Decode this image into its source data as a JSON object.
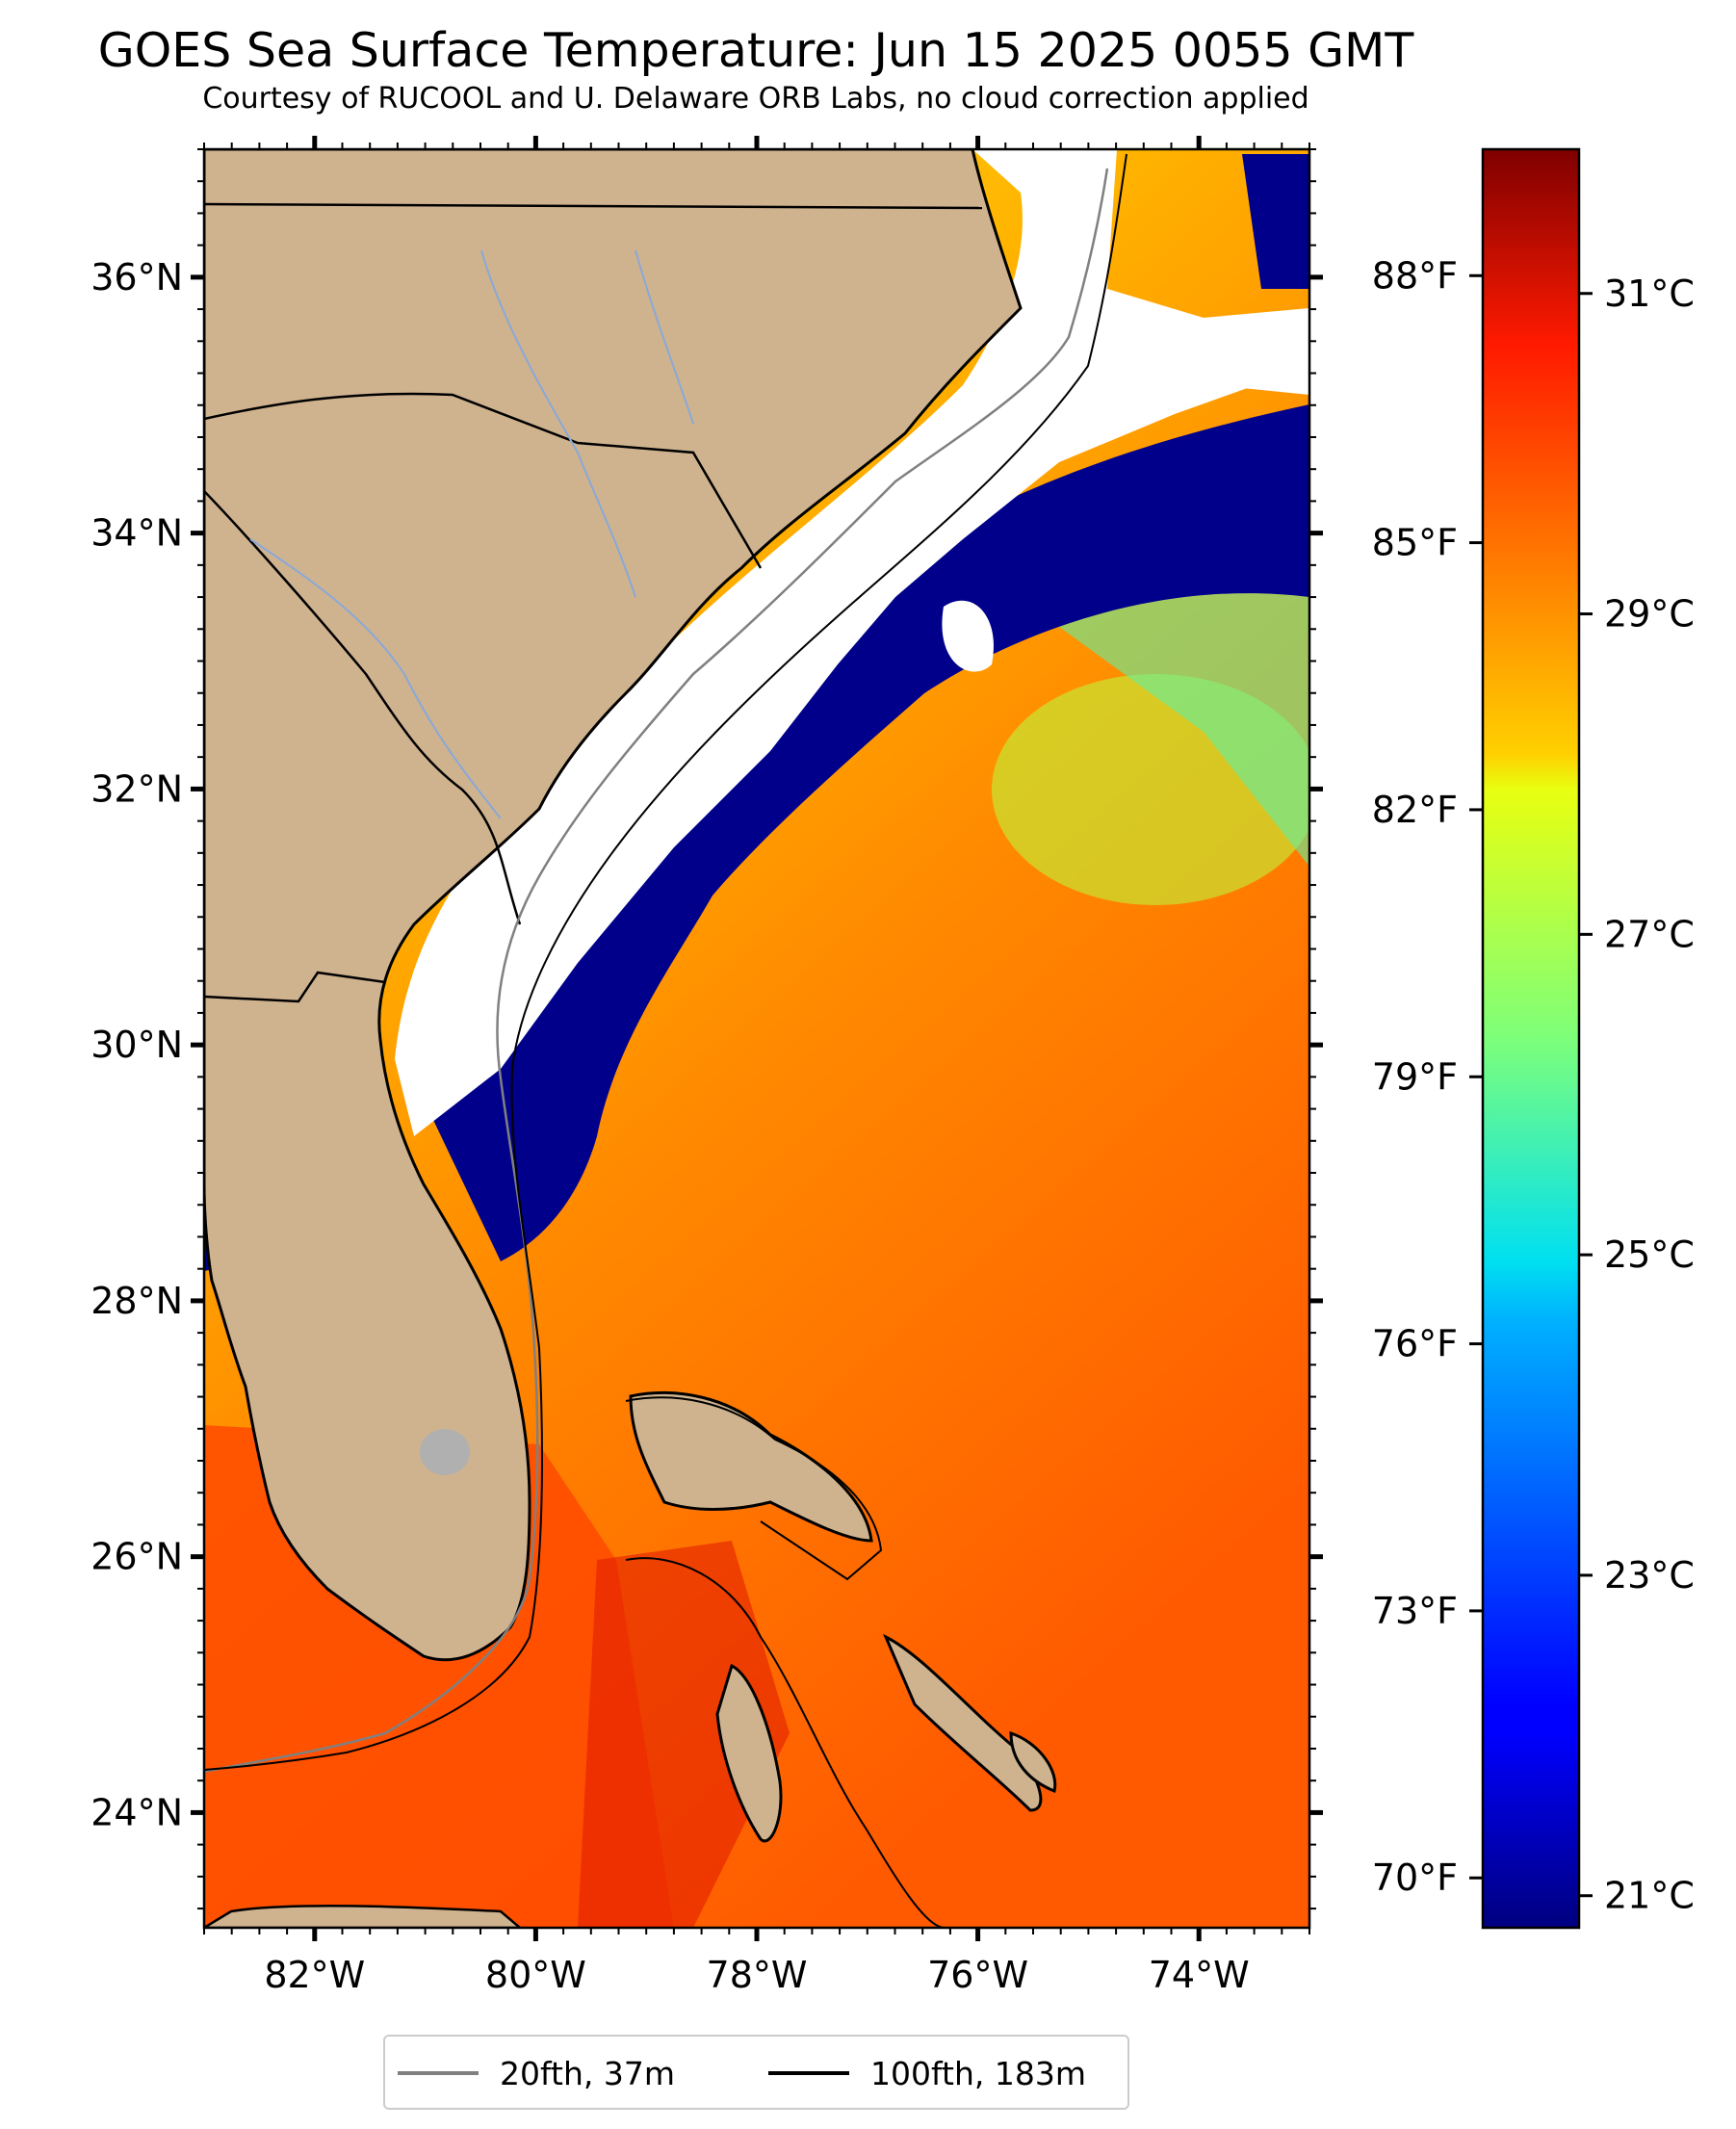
{
  "title": "GOES Sea Surface Temperature: Jun 15 2025 0055 GMT",
  "subtitle": "Courtesy of RUCOOL and U. Delaware ORB Labs, no cloud correction applied",
  "map": {
    "lon_range": [
      -83,
      -73
    ],
    "lat_range": [
      23.1,
      37.0
    ],
    "lon_ticks": [
      {
        "value": -82,
        "label": "82°W"
      },
      {
        "value": -80,
        "label": "80°W"
      },
      {
        "value": -78,
        "label": "78°W"
      },
      {
        "value": -76,
        "label": "76°W"
      },
      {
        "value": -74,
        "label": "74°W"
      }
    ],
    "lat_ticks": [
      {
        "value": 24,
        "label": "24°N"
      },
      {
        "value": 26,
        "label": "26°N"
      },
      {
        "value": 28,
        "label": "28°N"
      },
      {
        "value": 30,
        "label": "30°N"
      },
      {
        "value": 32,
        "label": "32°N"
      },
      {
        "value": 34,
        "label": "34°N"
      },
      {
        "value": 36,
        "label": "36°N"
      }
    ],
    "land_color": "#cfb38f",
    "no_data_color": "#ffffff"
  },
  "colorbar": {
    "colormap": "jet",
    "range_c": [
      20.8,
      31.9
    ],
    "celsius_ticks": [
      {
        "value": 21,
        "label": "21°C"
      },
      {
        "value": 23,
        "label": "23°C"
      },
      {
        "value": 25,
        "label": "25°C"
      },
      {
        "value": 27,
        "label": "27°C"
      },
      {
        "value": 29,
        "label": "29°C"
      },
      {
        "value": 31,
        "label": "31°C"
      }
    ],
    "fahrenheit_ticks": [
      {
        "value": 70,
        "label": "70°F"
      },
      {
        "value": 73,
        "label": "73°F"
      },
      {
        "value": 76,
        "label": "76°F"
      },
      {
        "value": 79,
        "label": "79°F"
      },
      {
        "value": 82,
        "label": "82°F"
      },
      {
        "value": 85,
        "label": "85°F"
      },
      {
        "value": 88,
        "label": "88°F"
      }
    ]
  },
  "legend": [
    {
      "label": "20fth, 37m",
      "color": "#808080"
    },
    {
      "label": "100fth, 183m",
      "color": "#000000"
    }
  ]
}
